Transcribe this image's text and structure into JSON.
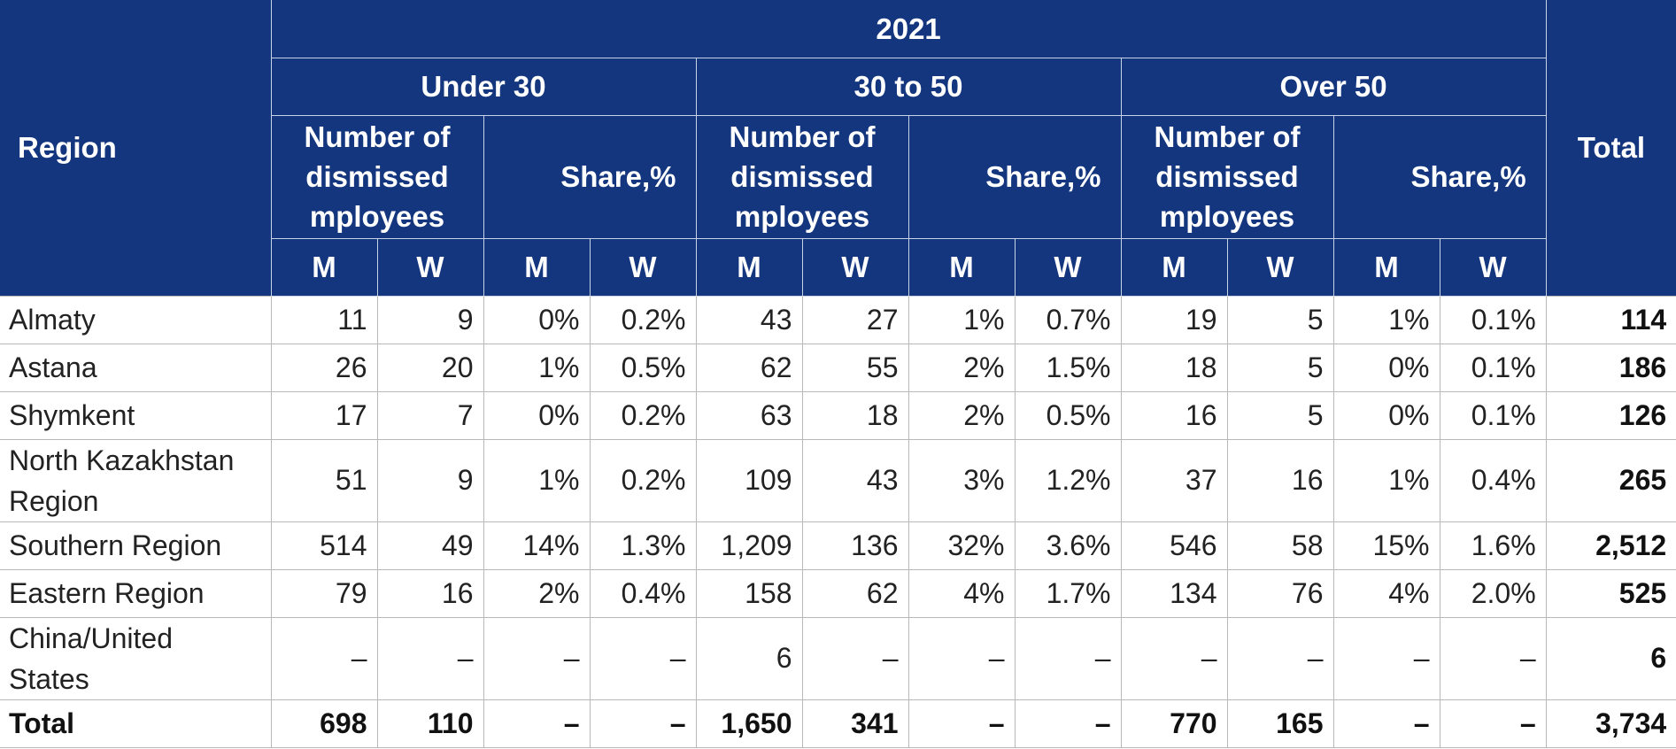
{
  "header": {
    "year": "2021",
    "region_label": "Region",
    "total_label": "Total",
    "age_groups": [
      "Under 30",
      "30 to 50",
      "Over 50"
    ],
    "count_label": "Number of dismissed mployees",
    "share_label": "Share,%",
    "gender": [
      "M",
      "W"
    ]
  },
  "rows": [
    {
      "region": "Almaty",
      "cells": [
        "11",
        "9",
        "0%",
        "0.2%",
        "43",
        "27",
        "1%",
        "0.7%",
        "19",
        "5",
        "1%",
        "0.1%"
      ],
      "total": "114"
    },
    {
      "region": "Astana",
      "cells": [
        "26",
        "20",
        "1%",
        "0.5%",
        "62",
        "55",
        "2%",
        "1.5%",
        "18",
        "5",
        "0%",
        "0.1%"
      ],
      "total": "186"
    },
    {
      "region": "Shymkent",
      "cells": [
        "17",
        "7",
        "0%",
        "0.2%",
        "63",
        "18",
        "2%",
        "0.5%",
        "16",
        "5",
        "0%",
        "0.1%"
      ],
      "total": "126"
    },
    {
      "region": "North Kazakhstan Region",
      "cells": [
        "51",
        "9",
        "1%",
        "0.2%",
        "109",
        "43",
        "3%",
        "1.2%",
        "37",
        "16",
        "1%",
        "0.4%"
      ],
      "total": "265"
    },
    {
      "region": "Southern Region",
      "cells": [
        "514",
        "49",
        "14%",
        "1.3%",
        "1,209",
        "136",
        "32%",
        "3.6%",
        "546",
        "58",
        "15%",
        "1.6%"
      ],
      "total": "2,512"
    },
    {
      "region": "Eastern Region",
      "cells": [
        "79",
        "16",
        "2%",
        "0.4%",
        "158",
        "62",
        "4%",
        "1.7%",
        "134",
        "76",
        "4%",
        "2.0%"
      ],
      "total": "525"
    },
    {
      "region": "China/United States",
      "cells": [
        "–",
        "–",
        "–",
        "–",
        "6",
        "–",
        "–",
        "–",
        "–",
        "–",
        "–",
        "–"
      ],
      "total": "6"
    }
  ],
  "total_row": {
    "label": "Total",
    "cells": [
      "698",
      "110",
      "–",
      "–",
      "1,650",
      "341",
      "–",
      "–",
      "770",
      "165",
      "–",
      "–"
    ],
    "total": "3,734"
  },
  "colors": {
    "header_bg": "#14367e",
    "header_text": "#ffffff",
    "grid": "#b8b8b8"
  }
}
